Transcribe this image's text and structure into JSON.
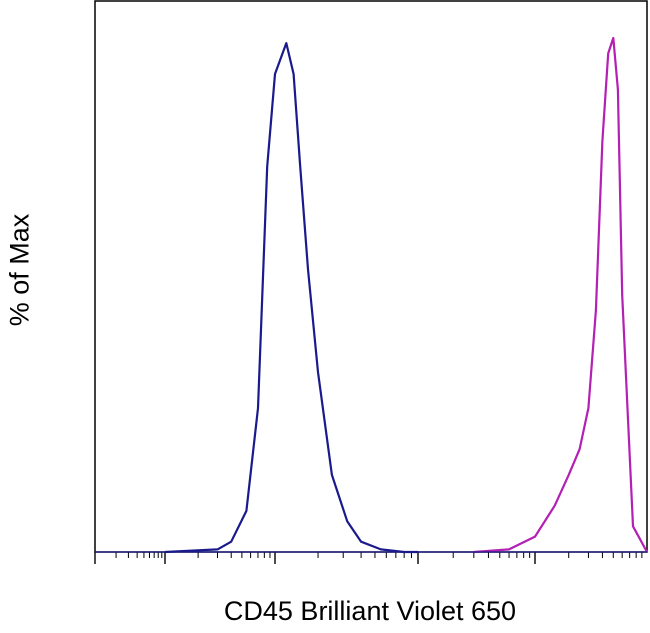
{
  "chart_data": {
    "type": "line",
    "title": "",
    "xlabel": "CD45 Brilliant Violet 650",
    "ylabel": "% of Max",
    "x_scale": "log",
    "ylim": [
      0,
      100
    ],
    "colors": {
      "series1": "#1a1a8c",
      "series2": "#b41fb4"
    },
    "series": [
      {
        "key": "series1",
        "x": [
          10,
          30,
          40,
          55,
          70,
          85,
          100,
          120,
          135,
          150,
          170,
          200,
          250,
          320,
          400,
          550,
          800,
          1000
        ],
        "values": [
          0,
          0.5,
          2,
          8,
          28,
          75,
          93,
          99,
          93,
          75,
          55,
          35,
          15,
          6,
          2,
          0.5,
          0,
          0
        ]
      },
      {
        "key": "series2",
        "x": [
          3000,
          6000,
          10000,
          15000,
          20000,
          25000,
          30000,
          35000,
          40000,
          45000,
          50000,
          55000,
          60000,
          75000,
          100000
        ],
        "values": [
          0,
          0.5,
          3,
          9,
          15,
          20,
          28,
          47,
          80,
          97,
          100,
          90,
          50,
          5,
          0
        ]
      }
    ]
  }
}
